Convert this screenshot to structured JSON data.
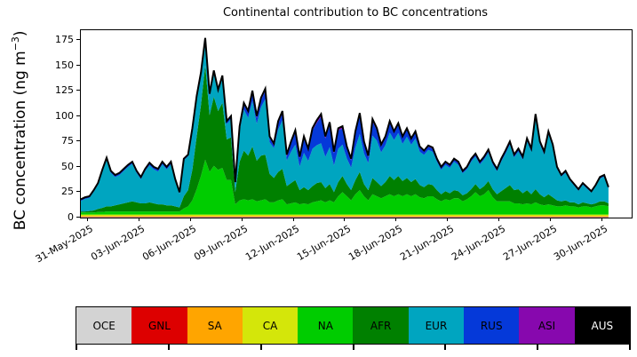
{
  "figure": {
    "title": "Continental contribution to BC concentrations",
    "ylabel_main": "BC concentration (ng m",
    "ylabel_sup": "−3",
    "ylabel_end": ")"
  },
  "chart_data": {
    "type": "area",
    "stacked": true,
    "title": "Continental contribution to BC concentrations",
    "xlabel": "",
    "ylabel": "BC concentration (ng m⁻³)",
    "grid": false,
    "legend_position": "bottom-strip",
    "ylim": [
      0,
      184.6
    ],
    "y_ticks": [
      0,
      25,
      50,
      75,
      100,
      125,
      150,
      175
    ],
    "x_axis_ticks": [
      "31-May-2025",
      "03-Jun-2025",
      "06-Jun-2025",
      "09-Jun-2025",
      "12-Jun-2025",
      "15-Jun-2025",
      "18-Jun-2025",
      "21-Jun-2025",
      "24-Jun-2025",
      "27-Jun-2025",
      "30-Jun-2025"
    ],
    "x_tick_interval_days": 3,
    "x_unit": "days since 31-May-2025 00:00",
    "x_domain_days": [
      -0.4,
      31.7
    ],
    "x_start": -0.4,
    "x_step": 0.25,
    "n_points": 124,
    "total_line_color": "#000000",
    "total_line_width": 2,
    "series": [
      {
        "name": "OCE",
        "color": "#d3d3d3",
        "label_text_color": "#000000",
        "constant": 0.4
      },
      {
        "name": "GNL",
        "color": "#dd0000",
        "label_text_color": "#000000",
        "constant": 0.4
      },
      {
        "name": "SA",
        "color": "#ffa500",
        "label_text_color": "#000000",
        "constant": 0.8
      },
      {
        "name": "CA",
        "color": "#d4e60a",
        "label_text_color": "#000000",
        "constant": 1.4
      },
      {
        "name": "NA",
        "color": "#00cc00",
        "label_text_color": "#000000",
        "values": [
          2,
          2,
          2,
          2,
          2.5,
          2.5,
          3,
          3,
          3,
          3,
          3,
          3,
          3,
          3,
          3,
          3,
          3,
          3,
          3,
          3,
          3,
          3,
          3,
          3,
          6,
          8,
          14,
          25,
          38,
          54,
          42,
          48,
          44,
          46,
          34,
          34,
          10,
          14,
          15,
          14,
          15,
          13,
          14,
          15,
          12,
          12,
          14,
          15,
          10,
          11,
          12,
          10,
          11,
          10,
          12,
          13,
          14,
          12,
          14,
          12,
          18,
          22,
          18,
          14,
          20,
          24,
          18,
          14,
          20,
          18,
          16,
          18,
          20,
          18,
          20,
          18,
          20,
          18,
          20,
          17,
          16,
          18,
          18,
          15,
          13,
          15,
          14,
          16,
          16,
          13,
          15,
          18,
          22,
          18,
          20,
          24,
          17,
          13,
          13,
          13,
          13,
          11,
          11,
          10,
          11,
          10,
          12,
          10,
          9,
          10,
          9,
          8,
          8,
          9,
          8,
          8,
          7,
          8,
          8,
          7,
          8,
          9,
          9,
          8
        ]
      },
      {
        "name": "AFR",
        "color": "#008000",
        "label_text_color": "#000000",
        "values": [
          1,
          1,
          1.5,
          2,
          3,
          4,
          5,
          5,
          6,
          7,
          8,
          9,
          10,
          9,
          8,
          8,
          9,
          8,
          7,
          7,
          6,
          6,
          5,
          4,
          12,
          16,
          30,
          52,
          70,
          93,
          56,
          68,
          58,
          64,
          40,
          42,
          12,
          38,
          48,
          44,
          52,
          40,
          44,
          44,
          28,
          24,
          28,
          30,
          18,
          20,
          22,
          14,
          16,
          14,
          16,
          18,
          18,
          14,
          16,
          10,
          14,
          16,
          12,
          10,
          14,
          18,
          12,
          10,
          16,
          14,
          12,
          14,
          18,
          16,
          18,
          15,
          16,
          14,
          15,
          12,
          11,
          12,
          11,
          9,
          7,
          8,
          7,
          8,
          7,
          6,
          6,
          7,
          8,
          7,
          8,
          9,
          8,
          7,
          10,
          13,
          16,
          13,
          14,
          11,
          13,
          10,
          13,
          10,
          8,
          10,
          8,
          6,
          5,
          5,
          4,
          4,
          3,
          4,
          3,
          3,
          3,
          4,
          4,
          3
        ]
      },
      {
        "name": "EUR",
        "color": "#00a5c0",
        "label_text_color": "#000000",
        "values": [
          10.4,
          12.4,
          12.9,
          18.4,
          23.9,
          35.4,
          45.9,
          32.9,
          27.9,
          28.9,
          31.9,
          34.9,
          36.9,
          28.9,
          23.9,
          31.9,
          36.4,
          33.4,
          32.4,
          39.4,
          35.4,
          40.4,
          24.9,
          13.4,
          35.4,
          33.4,
          38.8,
          37.8,
          29.3,
          24.1,
          18.1,
          23.1,
          18.1,
          24.1,
          15.1,
          18.1,
          7.8,
          30.8,
          40.3,
          37.3,
          44.8,
          36.3,
          47.8,
          54.8,
          31.3,
          29.3,
          41.8,
          47.8,
          25.3,
          30.8,
          34.8,
          23.3,
          33.8,
          28.8,
          36.8,
          37.3,
          38.3,
          30.8,
          36.3,
          26.3,
          32.8,
          30.8,
          25.3,
          22.3,
          31.8,
          37.3,
          30.3,
          26.6,
          41.8,
          40.8,
          33.3,
          36.3,
          42.8,
          39.3,
          42.3,
          36.6,
          40.6,
          36.8,
          39.8,
          32.8,
          31.8,
          33.8,
          32.8,
          28,
          24,
          26,
          25,
          28,
          26,
          21.7,
          23.7,
          27.2,
          27,
          24.2,
          26.2,
          28,
          24.2,
          22.7,
          29.2,
          34,
          40,
          32.2,
          37.2,
          33.2,
          48,
          42.2,
          70.5,
          49.2,
          42.2,
          59,
          49.2,
          30.8,
          24.3,
          27.3,
          21.4,
          16.4,
          13.4,
          17.4,
          14.4,
          11.7,
          16.5,
          22.4,
          24.4,
          14.7
        ]
      },
      {
        "name": "RUS",
        "color": "#0539d9",
        "label_text_color": "#000000",
        "values": [
          1,
          1,
          1,
          1,
          1,
          1.5,
          1.5,
          1.5,
          1.5,
          1.5,
          1.5,
          1.5,
          1.5,
          1.5,
          1.5,
          1.5,
          2,
          2,
          2,
          2,
          2,
          2,
          1.5,
          1,
          1,
          1,
          1.5,
          1.5,
          2,
          2,
          2,
          2,
          2,
          2,
          2,
          2,
          1.5,
          3,
          5,
          5,
          8,
          6,
          7,
          8,
          4,
          3,
          6,
          7,
          4,
          8,
          12,
          8,
          14,
          10,
          18,
          22,
          26,
          18,
          22,
          12,
          18,
          16,
          10,
          7,
          14,
          18,
          10,
          6,
          14,
          10,
          6,
          7,
          9,
          7,
          8,
          6,
          7,
          5,
          6,
          4,
          3,
          3,
          3,
          2,
          2,
          2,
          2,
          2,
          2,
          1.5,
          1.5,
          2,
          2,
          2,
          2,
          2,
          2,
          1.5,
          2,
          2,
          2,
          2,
          2,
          2,
          2,
          2,
          2.5,
          2,
          2,
          2,
          2,
          1.5,
          1,
          1,
          1,
          1,
          1,
          1,
          1,
          0.8,
          1,
          1,
          1,
          0.8
        ]
      },
      {
        "name": "ASI",
        "color": "#8708ae",
        "label_text_color": "#000000",
        "values": [
          0.4,
          0.4,
          0.4,
          0.4,
          0.4,
          0.4,
          0.4,
          0.4,
          0.4,
          0.4,
          0.4,
          0.4,
          0.4,
          0.4,
          0.4,
          0.4,
          0.4,
          0.4,
          0.4,
          0.4,
          0.4,
          0.4,
          0.4,
          0.4,
          0.4,
          0.4,
          0.5,
          0.5,
          0.5,
          0.7,
          0.7,
          0.7,
          0.7,
          0.7,
          0.7,
          0.7,
          0.5,
          1,
          1.5,
          1.5,
          2,
          1.5,
          2,
          2,
          1.5,
          1.5,
          2,
          2,
          1.5,
          2,
          2,
          1.5,
          2,
          2,
          2,
          2.5,
          2.5,
          2,
          2.5,
          1.5,
          2,
          2,
          1.5,
          1.5,
          2,
          2.5,
          1.5,
          1.2,
          2,
          2,
          1.5,
          1.5,
          2,
          1.5,
          1.5,
          1.2,
          1.2,
          1,
          1,
          1,
          1,
          1,
          1,
          0.8,
          0.8,
          0.8,
          0.8,
          0.8,
          0.8,
          0.6,
          0.6,
          0.6,
          0.8,
          0.6,
          0.6,
          0.8,
          0.6,
          0.6,
          0.6,
          0.8,
          0.8,
          0.6,
          0.6,
          0.6,
          0.8,
          0.6,
          0.8,
          0.6,
          0.6,
          0.8,
          0.6,
          0.5,
          0.5,
          0.5,
          0.4,
          0.4,
          0.4,
          0.4,
          0.4,
          0.3,
          0.3,
          0.4,
          0.4,
          0.3
        ]
      },
      {
        "name": "AUS",
        "color": "#000000",
        "label_text_color": "#ffffff",
        "constant": 0.2
      }
    ]
  },
  "legend": {
    "labels": [
      "OCE",
      "GNL",
      "SA",
      "CA",
      "NA",
      "AFR",
      "EUR",
      "RUS",
      "ASI",
      "AUS"
    ]
  }
}
